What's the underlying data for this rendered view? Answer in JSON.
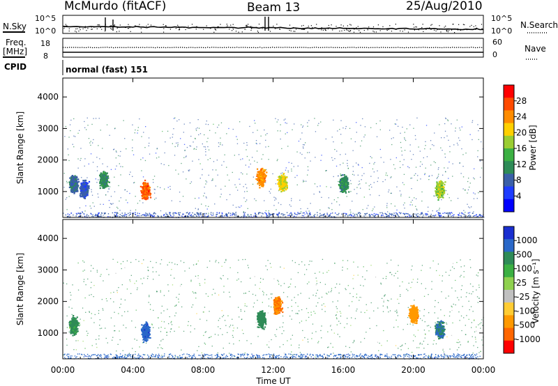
{
  "header": {
    "station": "McMurdo (fitACF)",
    "beam": "Beam 13",
    "date": "25/Aug/2010"
  },
  "top_panels": {
    "nsky_label": "N.Sky",
    "nsky_ticks": [
      "10^5",
      "10^0"
    ],
    "nsearch_label": "N.Search",
    "nsearch_ticks": [
      "10^5",
      "10^0"
    ],
    "freq_label_1": "Freq.",
    "freq_label_2": "[MHz]",
    "freq_ticks": [
      "18",
      "8"
    ],
    "nave_label": "Nave",
    "nave_ticks": [
      "60",
      "0"
    ],
    "cpid_label": "CPID",
    "cpid_value": "normal (fast) 151"
  },
  "chart_data": [
    {
      "type": "heatmap",
      "title": "",
      "xlabel": "",
      "ylabel": "Slant Range [km]",
      "xlim": [
        0,
        24
      ],
      "ylim": [
        180,
        4600
      ],
      "x_ticks": [
        "00:00",
        "04:00",
        "08:00",
        "12:00",
        "16:00",
        "20:00",
        "00:00"
      ],
      "y_ticks": [
        "1000",
        "2000",
        "3000",
        "4000"
      ],
      "colorbar": {
        "label": "Power [dB]",
        "ticks": [
          "28",
          "24",
          "20",
          "16",
          "12",
          "8",
          "4"
        ],
        "colors": [
          "#ff0000",
          "#ff4a00",
          "#ff8c00",
          "#ffd000",
          "#9acd32",
          "#3cb043",
          "#2e8b57",
          "#3a5fa8",
          "#1e3cff",
          "#0000ff"
        ]
      },
      "patches": [
        {
          "t": 0.6,
          "r": 1250,
          "v": 10
        },
        {
          "t": 1.2,
          "r": 1100,
          "v": 8
        },
        {
          "t": 2.3,
          "r": 1400,
          "v": 12
        },
        {
          "t": 4.7,
          "r": 1050,
          "v": 26
        },
        {
          "t": 11.3,
          "r": 1450,
          "v": 24
        },
        {
          "t": 12.5,
          "r": 1300,
          "v": 20
        },
        {
          "t": 16.0,
          "r": 1250,
          "v": 12
        },
        {
          "t": 21.5,
          "r": 1100,
          "v": 18
        }
      ]
    },
    {
      "type": "heatmap",
      "title": "",
      "xlabel": "Time UT",
      "ylabel": "Slant Range [km]",
      "xlim": [
        0,
        24
      ],
      "ylim": [
        180,
        4600
      ],
      "x_ticks": [
        "00:00",
        "04:00",
        "08:00",
        "12:00",
        "16:00",
        "20:00",
        "00:00"
      ],
      "y_ticks": [
        "1000",
        "2000",
        "3000",
        "4000"
      ],
      "colorbar": {
        "label": "Velocity [m s⁻¹]",
        "ticks": [
          "1000",
          "500",
          "100",
          "25",
          "-25",
          "-100",
          "-500",
          "-1000"
        ],
        "colors": [
          "#1a2fd0",
          "#2a68c8",
          "#2e8b57",
          "#3cb043",
          "#8fd14f",
          "#c0c0c0",
          "#ffcc33",
          "#ff9900",
          "#ff6600",
          "#ff0000"
        ]
      },
      "patches": [
        {
          "t": 0.6,
          "r": 1250,
          "v": 100
        },
        {
          "t": 4.7,
          "r": 1050,
          "v": 700
        },
        {
          "t": 11.3,
          "r": 1450,
          "v": 200
        },
        {
          "t": 12.2,
          "r": 1900,
          "v": -300
        },
        {
          "t": 20.0,
          "r": 1600,
          "v": -200
        },
        {
          "t": 21.5,
          "r": 1100,
          "v": 300
        }
      ]
    }
  ]
}
